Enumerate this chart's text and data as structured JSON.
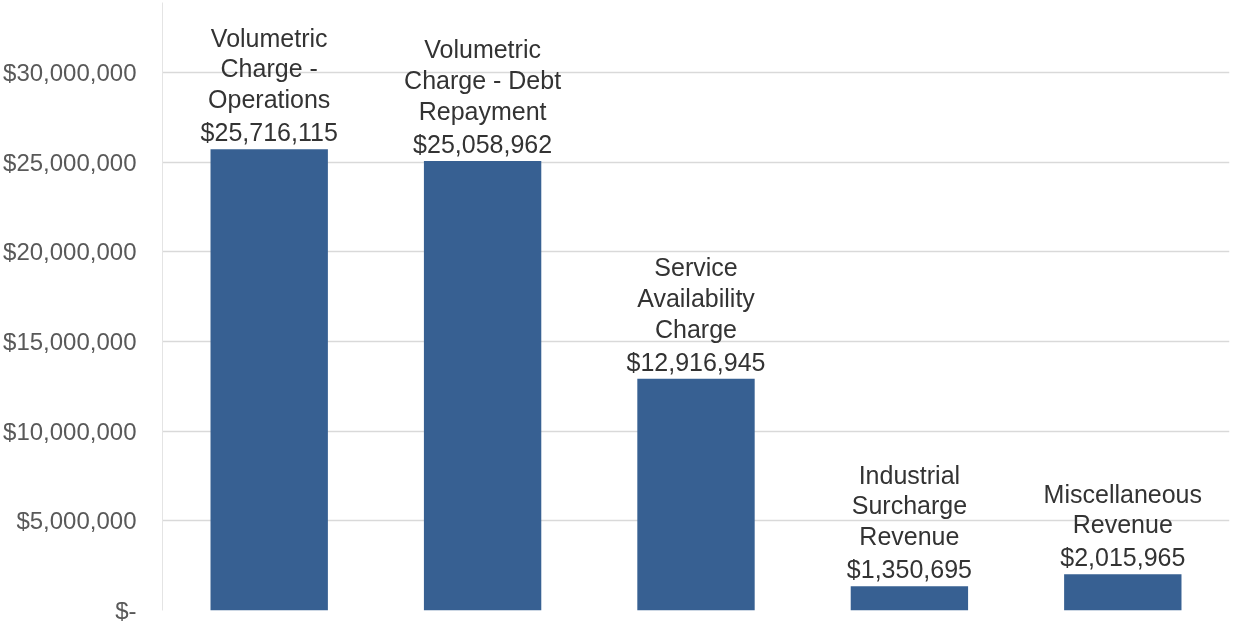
{
  "chart_data": {
    "type": "bar",
    "categories": [
      "Volumetric Charge - Operations",
      "Volumetric Charge - Debt Repayment",
      "Service Availability Charge",
      "Industrial Surcharge Revenue",
      "Miscellaneous Revenue"
    ],
    "values": [
      25716115,
      25058962,
      12916945,
      1350695,
      2015965
    ],
    "value_labels": [
      "$25,716,115",
      "$25,058,962",
      "$12,916,945",
      "$1,350,695",
      "$2,015,965"
    ],
    "color": "#376092",
    "ylim": [
      0,
      33900000
    ],
    "yticks": [
      {
        "value": 0,
        "label": "$-"
      },
      {
        "value": 5000000,
        "label": "$5,000,000"
      },
      {
        "value": 10000000,
        "label": "$10,000,000"
      },
      {
        "value": 15000000,
        "label": "$15,000,000"
      },
      {
        "value": 20000000,
        "label": "$20,000,000"
      },
      {
        "value": 25000000,
        "label": "$25,000,000"
      },
      {
        "value": 30000000,
        "label": "$30,000,000"
      }
    ],
    "grid": "y"
  }
}
